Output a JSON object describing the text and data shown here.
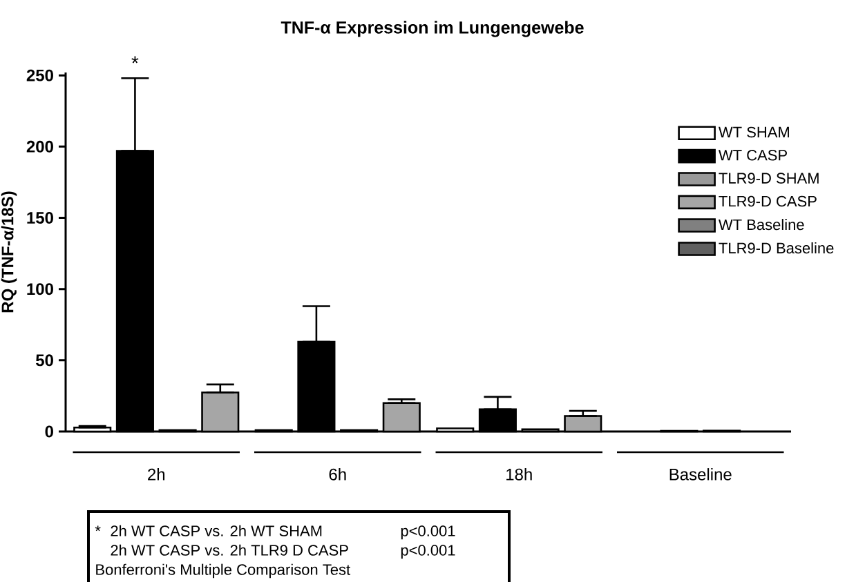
{
  "chart_data": {
    "type": "bar",
    "title": "TNF-α Expression im Lungengewebe",
    "ylabel": "RQ  (TNF-α/18S)",
    "categories": [
      "2h",
      "6h",
      "18h",
      "Baseline"
    ],
    "series": [
      {
        "name": "WT SHAM",
        "color": "#ffffff",
        "values": [
          2.8,
          1,
          2.2,
          null
        ],
        "errors": [
          [
            2.8,
            3.9
          ],
          null,
          null,
          null
        ]
      },
      {
        "name": "WT CASP",
        "color": "#000000",
        "values": [
          197,
          63,
          15.6,
          null
        ],
        "errors": [
          [
            197,
            248
          ],
          [
            63,
            88
          ],
          [
            15.6,
            24.3
          ],
          null
        ]
      },
      {
        "name": "TLR9-D SHAM",
        "color": "#999999",
        "values": [
          1,
          1,
          1.5,
          null
        ],
        "errors": [
          null,
          null,
          null,
          null
        ]
      },
      {
        "name": "TLR9-D CASP",
        "color": "#a6a6a6",
        "values": [
          27.4,
          20,
          10.9,
          null
        ],
        "errors": [
          [
            27.4,
            33
          ],
          [
            20,
            22.6
          ],
          [
            10.9,
            14.5
          ],
          null
        ]
      },
      {
        "name": "WT Baseline",
        "color": "#808080",
        "values": [
          null,
          null,
          null,
          0.5
        ],
        "errors": [
          null,
          null,
          null,
          null
        ]
      },
      {
        "name": "TLR9-D Baseline",
        "color": "#606060",
        "values": [
          null,
          null,
          null,
          0.6
        ],
        "errors": [
          null,
          null,
          null,
          null
        ]
      }
    ],
    "ylim": [
      0,
      252
    ],
    "yticks": [
      0,
      50,
      100,
      150,
      200,
      250
    ],
    "legend": "top right",
    "annotations": [
      "*",
      "*",
      "2h WT CASP vs. 2h WT SHAM",
      "p<0.001",
      "2h WT CASP vs. 2h TLR9 D CASP",
      "p<0.001",
      "Bonferroni's Multiple Comparison Test"
    ]
  }
}
